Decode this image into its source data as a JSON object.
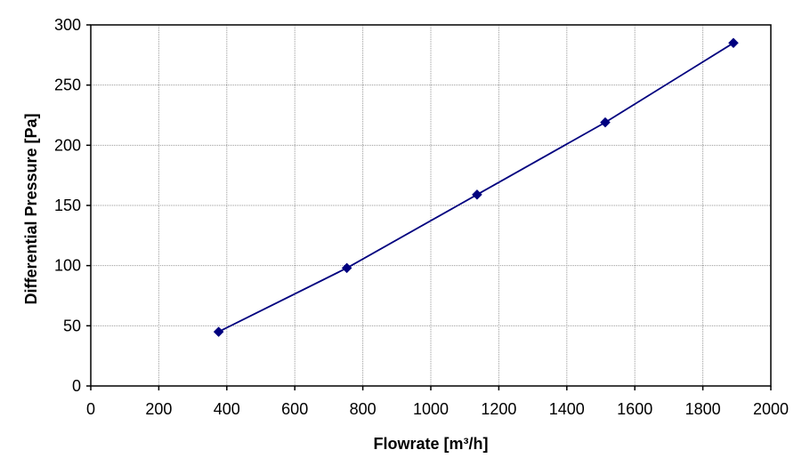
{
  "chart_data": {
    "type": "line",
    "title": "",
    "xlabel": "Flowrate [m³/h]",
    "ylabel": "Differential Pressure [Pa]",
    "xlim": [
      0,
      2000
    ],
    "ylim": [
      0,
      300
    ],
    "x_ticks": [
      "0",
      "200",
      "400",
      "600",
      "800",
      "1000",
      "1200",
      "1400",
      "1600",
      "1800",
      "2000"
    ],
    "y_ticks": [
      "0",
      "50",
      "100",
      "150",
      "200",
      "250",
      "300"
    ],
    "grid": true,
    "legend": "none",
    "series": [
      {
        "marker": "diamond",
        "color": "#00007f",
        "x": [
          376,
          753,
          1136,
          1513,
          1890
        ],
        "y": [
          45,
          98,
          159,
          219,
          285
        ]
      }
    ]
  }
}
